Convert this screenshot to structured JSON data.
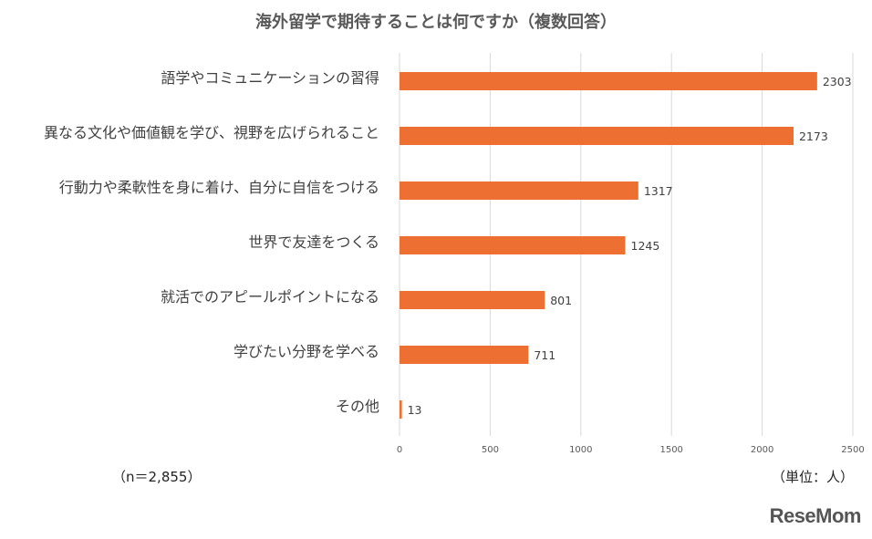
{
  "chart_data": {
    "type": "bar",
    "orientation": "horizontal",
    "title": "海外留学で期待することは何ですか（複数回答）",
    "categories": [
      "語学やコミュニケーションの習得",
      "異なる文化や価値観を学び、視野を広げられること",
      "行動力や柔軟性を身に着け、自分に自信をつける",
      "世界で友達をつくる",
      "就活でのアピールポイントになる",
      "学びたい分野を学べる",
      "その他"
    ],
    "values": [
      2303,
      2173,
      1317,
      1245,
      801,
      711,
      13
    ],
    "xlim": [
      0,
      2500
    ],
    "xticks": [
      0,
      500,
      1000,
      1500,
      2000,
      2500
    ],
    "grid": "vertical",
    "bar_color": "#ED7032"
  },
  "notes": {
    "sample": "（n＝2,855）",
    "unit": "（単位：人）"
  },
  "logo": "ReseMom"
}
